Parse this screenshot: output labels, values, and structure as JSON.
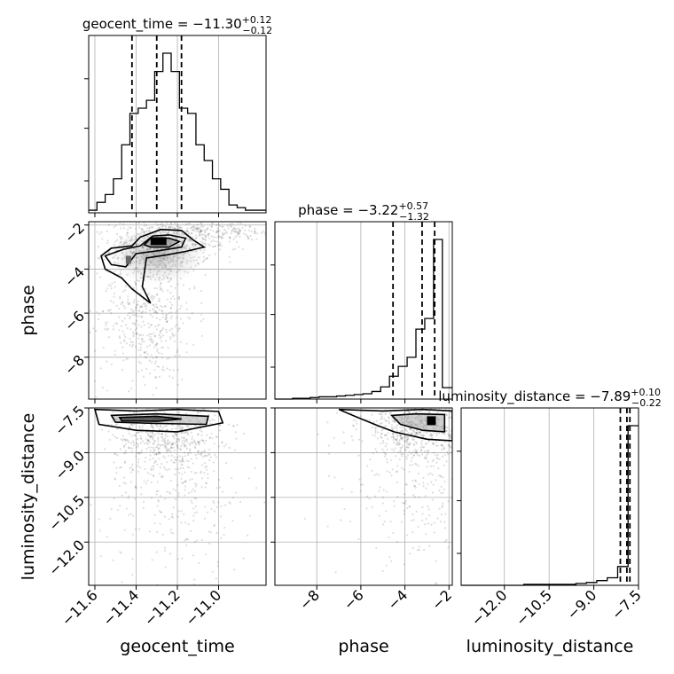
{
  "chart_data": {
    "type": "corner",
    "parameters": [
      "geocent_time",
      "phase",
      "luminosity_distance"
    ],
    "axis_labels": {
      "x": [
        "geocent_time",
        "phase",
        "luminosity_distance"
      ],
      "y": [
        "phase",
        "luminosity_distance"
      ]
    },
    "grid": true,
    "titles": [
      {
        "name": "geocent_time",
        "value": "−11.30",
        "plus": "+0.12",
        "minus": "−0.12"
      },
      {
        "name": "phase",
        "value": "−3.22",
        "plus": "+0.57",
        "minus": "−1.32"
      },
      {
        "name": "luminosity_distance",
        "value": "−7.89",
        "plus": "+0.10",
        "minus": "−0.22"
      }
    ],
    "ranges": {
      "geocent_time": [
        -11.63,
        -10.77
      ],
      "phase": [
        -9.9,
        -1.85
      ],
      "luminosity_distance": [
        -13.45,
        -7.5
      ]
    },
    "ticks": {
      "geocent_time": {
        "values": [
          -11.6,
          -11.4,
          -11.2,
          -11.0
        ],
        "labels": [
          "−11.6",
          "−11.4",
          "−11.2",
          "−11.0"
        ]
      },
      "phase": {
        "values": [
          -8,
          -6,
          -4,
          -2
        ],
        "labels": [
          "−8",
          "−6",
          "−4",
          "−2"
        ]
      },
      "luminosity_distance": {
        "values": [
          -12.0,
          -10.5,
          -9.0,
          -7.5
        ],
        "labels": [
          "−12.0",
          "−10.5",
          "−9.0",
          "−7.5"
        ]
      }
    },
    "quantile_lines": {
      "geocent_time": [
        -11.42,
        -11.3,
        -11.18
      ],
      "phase": [
        -4.54,
        -3.22,
        -2.65
      ],
      "luminosity_distance": [
        -8.11,
        -7.89,
        -7.79
      ]
    },
    "histograms": {
      "geocent_time": {
        "edges": [
          -11.63,
          -11.59,
          -11.55,
          -11.51,
          -11.47,
          -11.43,
          -11.39,
          -11.35,
          -11.31,
          -11.27,
          -11.23,
          -11.19,
          -11.15,
          -11.11,
          -11.07,
          -11.03,
          -10.99,
          -10.95,
          -10.91,
          -10.87,
          -10.83,
          -10.77
        ],
        "counts": [
          1,
          4,
          7,
          13,
          26,
          38,
          40,
          43,
          54,
          61,
          54,
          40,
          38,
          26,
          20,
          13,
          9,
          3,
          2,
          1,
          1
        ]
      },
      "phase": {
        "edges": [
          -9.9,
          -9.5,
          -9.1,
          -8.7,
          -8.3,
          -7.9,
          -7.5,
          -7.1,
          -6.7,
          -6.3,
          -5.9,
          -5.5,
          -5.1,
          -4.7,
          -4.3,
          -3.9,
          -3.5,
          -3.1,
          -2.7,
          -2.3,
          -1.85
        ],
        "counts": [
          0,
          0,
          1,
          1,
          2,
          3,
          3,
          4,
          5,
          6,
          7,
          10,
          16,
          30,
          43,
          55,
          92,
          106,
          210,
          15
        ]
      },
      "luminosity_distance": {
        "edges": [
          -13.45,
          -13.1,
          -12.75,
          -12.4,
          -12.05,
          -11.7,
          -11.35,
          -11.0,
          -10.65,
          -10.3,
          -9.95,
          -9.6,
          -9.25,
          -8.9,
          -8.55,
          -8.2,
          -7.85,
          -7.5
        ],
        "counts": [
          0,
          0,
          0,
          0,
          0,
          0,
          1,
          1,
          1,
          1,
          1,
          2,
          3,
          5,
          8,
          20,
          170
        ]
      }
    },
    "density_mode": {
      "geocent_time": -11.28,
      "phase": -2.8,
      "luminosity_distance": -7.7
    }
  }
}
